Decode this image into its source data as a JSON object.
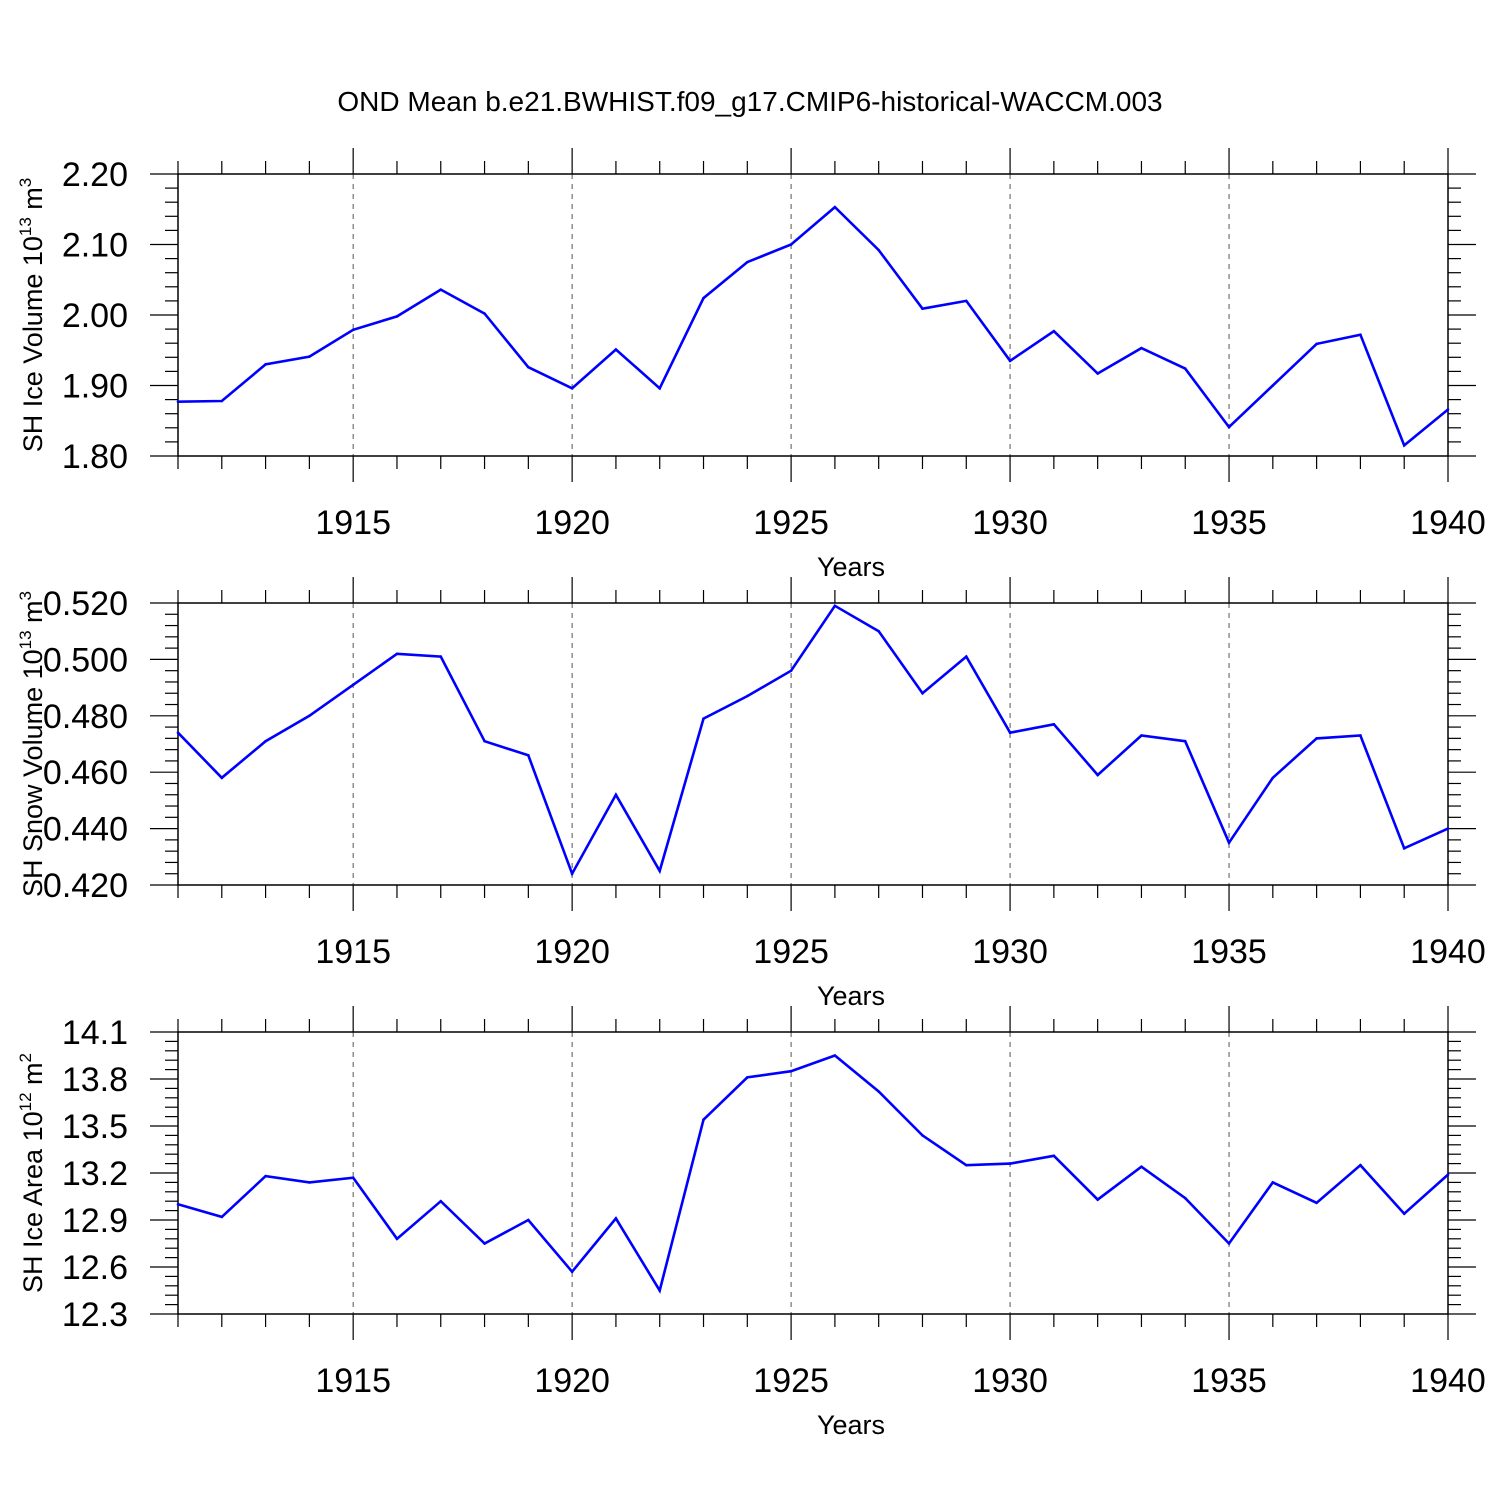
{
  "title": "OND Mean b.e21.BWHIST.f09_g17.CMIP6-historical-WACCM.003",
  "colors": {
    "series": "#0000ff",
    "axis": "#000000",
    "grid": "#555555"
  },
  "chart_data": [
    {
      "type": "line",
      "ylabel": "SH Ice Volume 10",
      "ylabel_exp": "13",
      "ylabel_unit": " m",
      "ylabel_unit_exp": "3",
      "xlabel": "Years",
      "xlim": [
        1911,
        1940
      ],
      "ylim": [
        1.8,
        2.2
      ],
      "xticks": [
        1915,
        1920,
        1925,
        1930,
        1935,
        1940
      ],
      "xtick_labels": [
        "1915",
        "1920",
        "1925",
        "1930",
        "1935",
        "1940"
      ],
      "yticks": [
        1.8,
        1.9,
        2.0,
        2.1,
        2.2
      ],
      "ytick_labels": [
        "1.80",
        "1.90",
        "2.00",
        "2.10",
        "2.20"
      ],
      "grid": "vertical dashed at major x ticks",
      "x": [
        1911,
        1912,
        1913,
        1914,
        1915,
        1916,
        1917,
        1918,
        1919,
        1920,
        1921,
        1922,
        1923,
        1924,
        1925,
        1926,
        1927,
        1928,
        1929,
        1930,
        1931,
        1932,
        1933,
        1934,
        1935,
        1936,
        1937,
        1938,
        1939,
        1940
      ],
      "y": [
        1.877,
        1.878,
        1.93,
        1.941,
        1.979,
        1.998,
        2.036,
        2.002,
        1.926,
        1.896,
        1.951,
        1.896,
        2.024,
        2.075,
        2.1,
        2.153,
        2.092,
        2.009,
        2.02,
        1.935,
        1.977,
        1.917,
        1.953,
        1.924,
        1.841,
        1.9,
        1.959,
        1.972,
        1.815,
        1.866
      ]
    },
    {
      "type": "line",
      "ylabel": "SH Snow Volume 10",
      "ylabel_exp": "13",
      "ylabel_unit": " m",
      "ylabel_unit_exp": "3",
      "xlabel": "Years",
      "xlim": [
        1911,
        1940
      ],
      "ylim": [
        0.42,
        0.52
      ],
      "xticks": [
        1915,
        1920,
        1925,
        1930,
        1935,
        1940
      ],
      "xtick_labels": [
        "1915",
        "1920",
        "1925",
        "1930",
        "1935",
        "1940"
      ],
      "yticks": [
        0.42,
        0.44,
        0.46,
        0.48,
        0.5,
        0.52
      ],
      "ytick_labels": [
        "0.420",
        "0.440",
        "0.460",
        "0.480",
        "0.500",
        "0.520"
      ],
      "grid": "vertical dashed at major x ticks",
      "x": [
        1911,
        1912,
        1913,
        1914,
        1915,
        1916,
        1917,
        1918,
        1919,
        1920,
        1921,
        1922,
        1923,
        1924,
        1925,
        1926,
        1927,
        1928,
        1929,
        1930,
        1931,
        1932,
        1933,
        1934,
        1935,
        1936,
        1937,
        1938,
        1939,
        1940
      ],
      "y": [
        0.474,
        0.458,
        0.471,
        0.48,
        0.491,
        0.502,
        0.501,
        0.471,
        0.466,
        0.424,
        0.452,
        0.425,
        0.479,
        0.487,
        0.496,
        0.519,
        0.51,
        0.488,
        0.501,
        0.474,
        0.477,
        0.459,
        0.473,
        0.471,
        0.435,
        0.458,
        0.472,
        0.473,
        0.433,
        0.44
      ]
    },
    {
      "type": "line",
      "ylabel": "SH Ice Area 10",
      "ylabel_exp": "12",
      "ylabel_unit": " m",
      "ylabel_unit_exp": "2",
      "xlabel": "Years",
      "xlim": [
        1911,
        1940
      ],
      "ylim": [
        12.3,
        14.1
      ],
      "xticks": [
        1915,
        1920,
        1925,
        1930,
        1935,
        1940
      ],
      "xtick_labels": [
        "1915",
        "1920",
        "1925",
        "1930",
        "1935",
        "1940"
      ],
      "yticks": [
        12.3,
        12.6,
        12.9,
        13.2,
        13.5,
        13.8,
        14.1
      ],
      "ytick_labels": [
        "12.3",
        "12.6",
        "12.9",
        "13.2",
        "13.5",
        "13.8",
        "14.1"
      ],
      "grid": "vertical dashed at major x ticks",
      "x": [
        1911,
        1912,
        1913,
        1914,
        1915,
        1916,
        1917,
        1918,
        1919,
        1920,
        1921,
        1922,
        1923,
        1924,
        1925,
        1926,
        1927,
        1928,
        1929,
        1930,
        1931,
        1932,
        1933,
        1934,
        1935,
        1936,
        1937,
        1938,
        1939,
        1940
      ],
      "y": [
        13.0,
        12.92,
        13.18,
        13.14,
        13.17,
        12.78,
        13.02,
        12.75,
        12.9,
        12.57,
        12.91,
        12.45,
        13.54,
        13.81,
        13.85,
        13.95,
        13.72,
        13.44,
        13.25,
        13.26,
        13.31,
        13.03,
        13.24,
        13.04,
        12.75,
        13.14,
        13.01,
        13.25,
        12.94,
        13.19
      ]
    }
  ]
}
